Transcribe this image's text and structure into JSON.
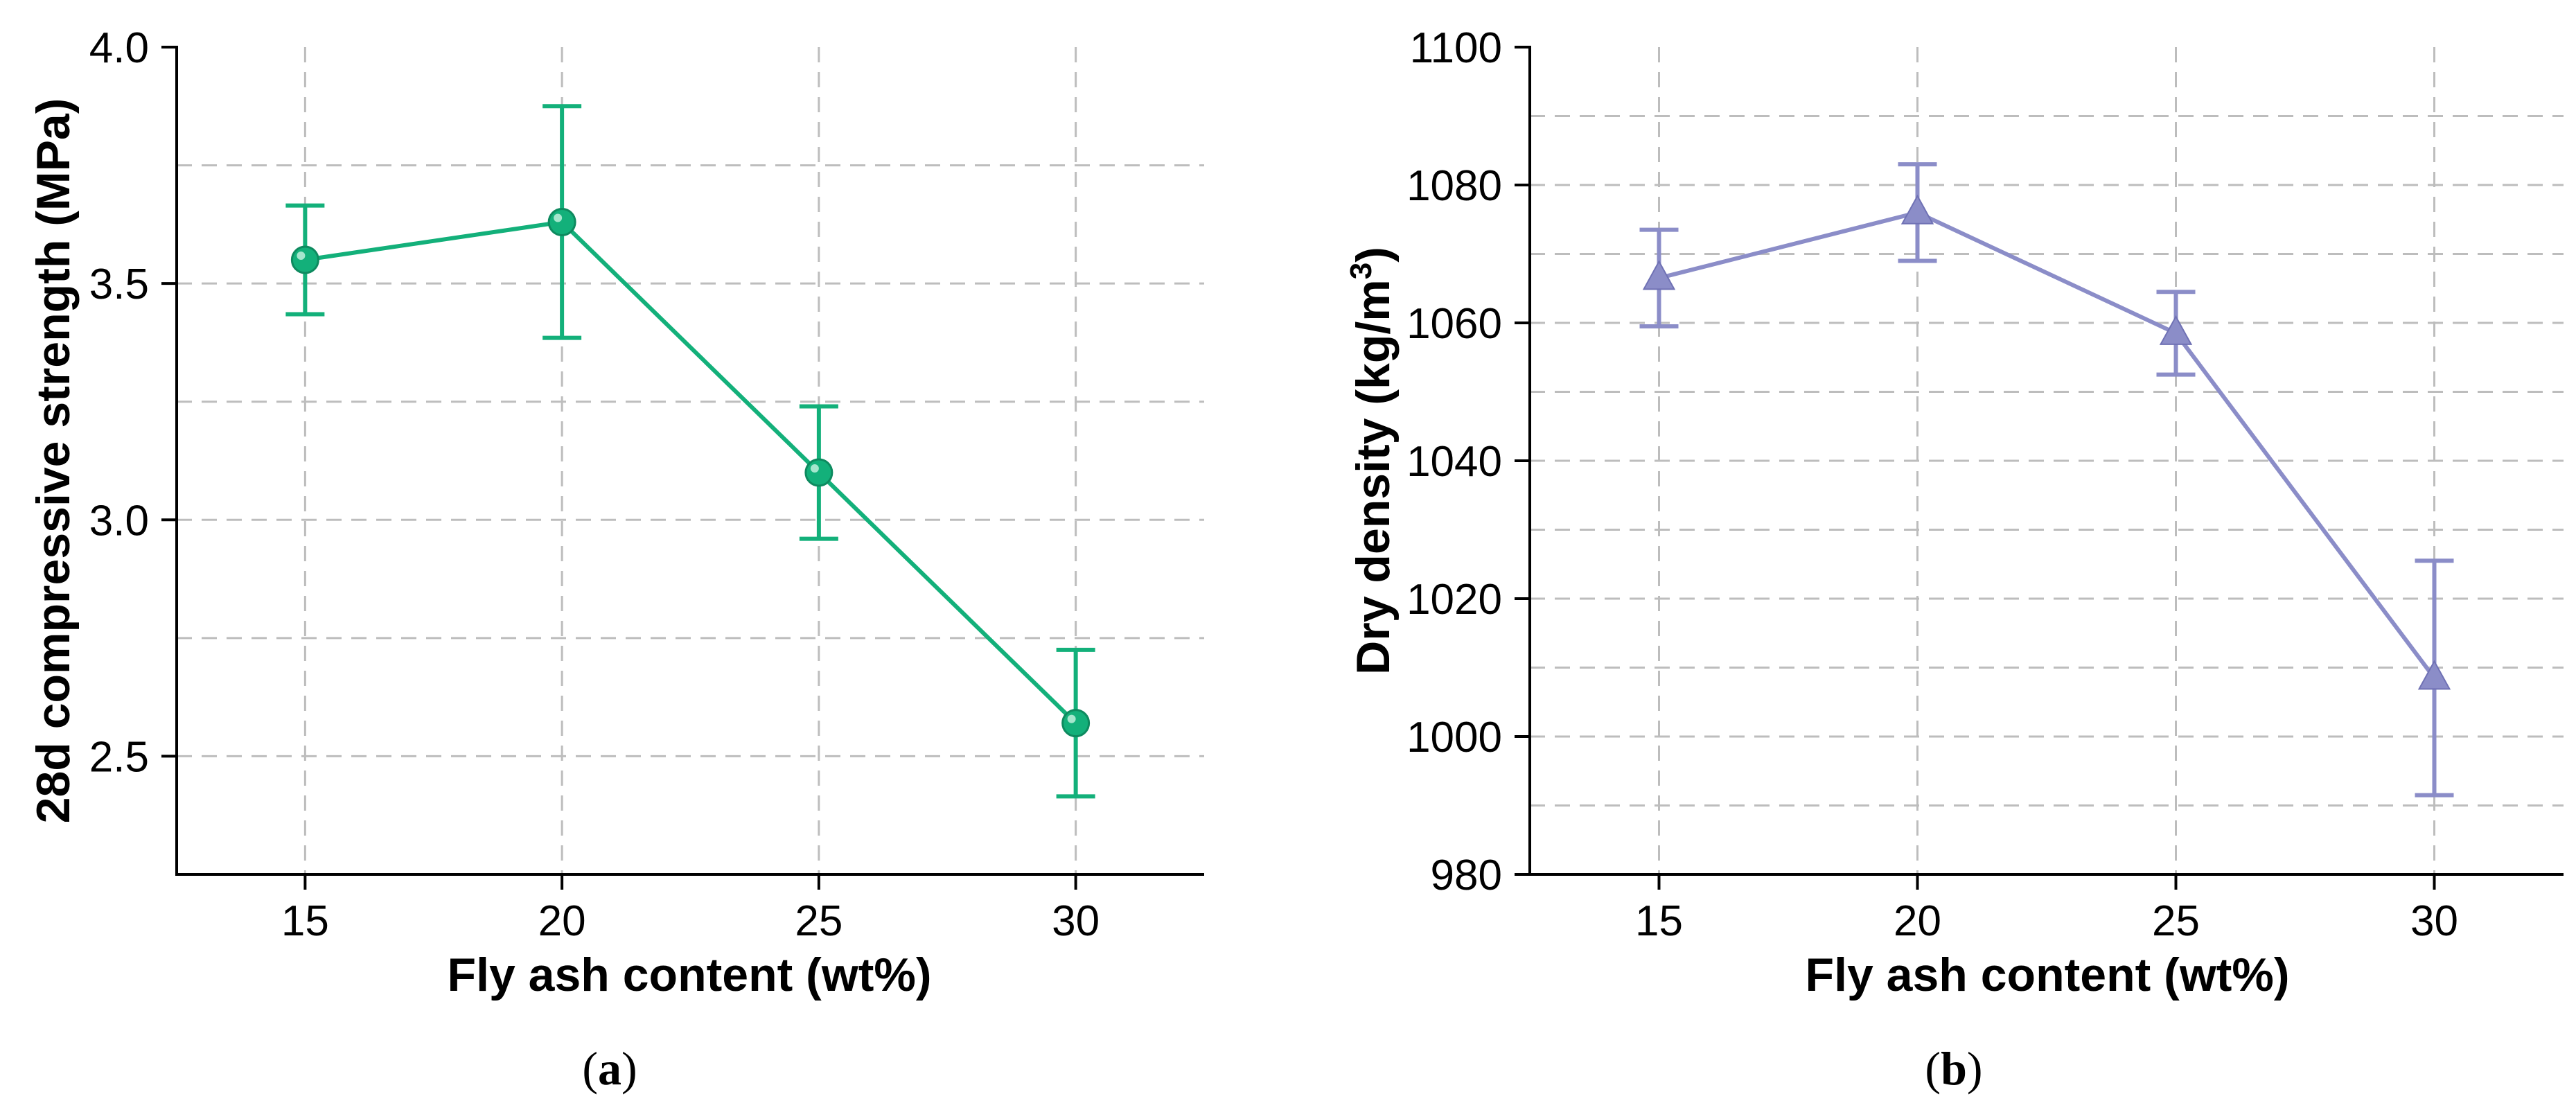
{
  "chart_data": [
    {
      "type": "line",
      "panel_label": "a",
      "title": "",
      "xlabel": "Fly ash content (wt%)",
      "ylabel": "28d compressive strength (MPa)",
      "xlim": [
        12.5,
        32.5
      ],
      "ylim": [
        2.25,
        4.0
      ],
      "x_ticks": [
        15,
        20,
        25,
        30
      ],
      "x_tick_labels": [
        "15",
        "20",
        "25",
        "30"
      ],
      "y_ticks": [
        2.5,
        3.0,
        3.5,
        4.0
      ],
      "y_tick_labels": [
        "2.5",
        "3.0",
        "3.5",
        "4.0"
      ],
      "y_grid": [
        2.5,
        2.75,
        3.0,
        3.25,
        3.5,
        3.75
      ],
      "grid": true,
      "marker": "circle",
      "color": "#13b07a",
      "series": [
        {
          "name": "28d compressive strength",
          "x": [
            15,
            20,
            25,
            30
          ],
          "y": [
            3.55,
            3.63,
            3.1,
            2.57
          ],
          "error": [
            0.115,
            0.245,
            0.14,
            0.155
          ]
        }
      ]
    },
    {
      "type": "line",
      "panel_label": "b",
      "title": "",
      "xlabel": "Fly ash content (wt%)",
      "ylabel_main": "Dry density (kg/m",
      "ylabel_sup": "3",
      "ylabel_close": ")",
      "xlim": [
        12.5,
        32.5
      ],
      "ylim": [
        980,
        1100
      ],
      "x_ticks": [
        15,
        20,
        25,
        30
      ],
      "x_tick_labels": [
        "15",
        "20",
        "25",
        "30"
      ],
      "y_ticks": [
        980,
        1000,
        1020,
        1040,
        1060,
        1080,
        1100
      ],
      "y_tick_labels": [
        "980",
        "1000",
        "1020",
        "1040",
        "1060",
        "1080",
        "1100"
      ],
      "y_grid": [
        990,
        1000,
        1010,
        1020,
        1030,
        1040,
        1050,
        1060,
        1070,
        1080,
        1090
      ],
      "grid": true,
      "marker": "triangle",
      "color": "#8b8dc8",
      "series": [
        {
          "name": "Dry density",
          "x": [
            15,
            20,
            25,
            30
          ],
          "y": [
            1066.5,
            1076,
            1058.5,
            1008.5
          ],
          "error": [
            7,
            7,
            6,
            17
          ]
        }
      ]
    }
  ]
}
